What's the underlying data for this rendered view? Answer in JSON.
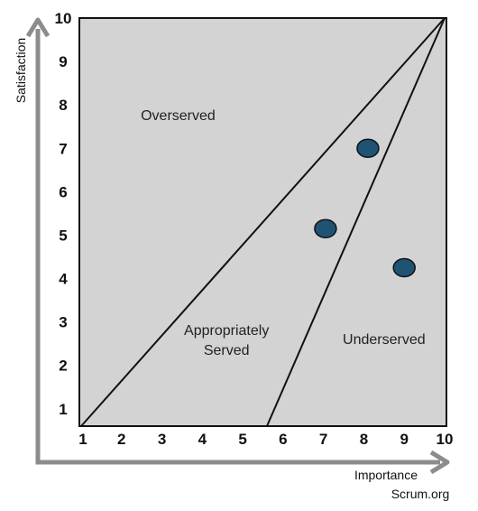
{
  "chart_data": {
    "type": "scatter",
    "title": "",
    "xlabel": "Importance",
    "ylabel": "Satisfaction",
    "xlim": [
      1,
      10
    ],
    "ylim": [
      0.6,
      10
    ],
    "x_ticks": [
      "1",
      "2",
      "3",
      "4",
      "5",
      "6",
      "7",
      "8",
      "9",
      "10"
    ],
    "y_ticks": [
      "1",
      "2",
      "3",
      "4",
      "5",
      "6",
      "7",
      "8",
      "9",
      "10"
    ],
    "grid": false,
    "plot_background": "#d3d3d3",
    "marker_color": "#1f5373",
    "boundary_lines": [
      {
        "from": [
          1,
          0.6
        ],
        "to": [
          10,
          10
        ]
      },
      {
        "from": [
          5.6,
          0.6
        ],
        "to": [
          10,
          10
        ]
      }
    ],
    "regions": [
      {
        "label": "Overserved",
        "x": 3.4,
        "y": 7.75
      },
      {
        "label": "Appropriately\nServed",
        "x": 4.6,
        "y": 2.6
      },
      {
        "label": "Underserved",
        "x": 8.5,
        "y": 2.6
      }
    ],
    "points": [
      {
        "x": 8.1,
        "y": 7.0
      },
      {
        "x": 7.05,
        "y": 5.15
      },
      {
        "x": 9.0,
        "y": 4.25
      }
    ]
  },
  "credit": "Scrum.org"
}
